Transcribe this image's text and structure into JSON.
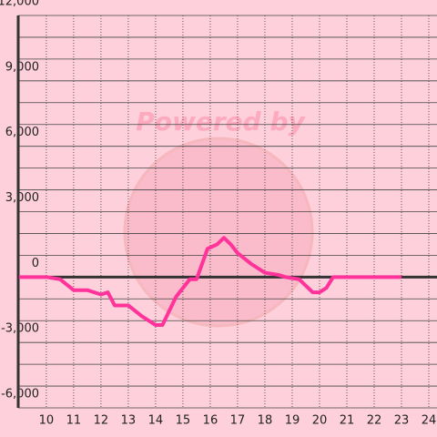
{
  "chart_data": {
    "type": "line",
    "watermark": "Powered by",
    "x": [
      9,
      10,
      10.5,
      11,
      11.5,
      12,
      12.25,
      12.5,
      13,
      13.5,
      14,
      14.25,
      14.75,
      15.25,
      15.5,
      15.9,
      16.25,
      16.5,
      16.75,
      17,
      17.5,
      18,
      18.5,
      18.75,
      19.25,
      19.75,
      20,
      20.25,
      20.5,
      23
    ],
    "series": [
      {
        "color": "#ff3399",
        "values": [
          0,
          0,
          -100,
          -600,
          -600,
          -800,
          -700,
          -1300,
          -1300,
          -1800,
          -2200,
          -2200,
          -900,
          -100,
          -100,
          1300,
          1500,
          1800,
          1500,
          1100,
          600,
          200,
          100,
          0,
          -100,
          -700,
          -700,
          -500,
          0,
          0
        ]
      }
    ],
    "xlim": [
      8.97,
      24.3
    ],
    "xticks": [
      10,
      11,
      12,
      13,
      14,
      15,
      16,
      17,
      18,
      19,
      20,
      21,
      22,
      23,
      24
    ],
    "ylim": [
      -6000,
      12000
    ],
    "yticks": [
      {
        "value": -6000,
        "label": "-6,000"
      },
      {
        "value": -3000,
        "label": "-3,000"
      },
      0,
      {
        "value": 3000,
        "label": "3,000"
      },
      {
        "value": 6000,
        "label": "6,000"
      },
      {
        "value": 9000,
        "label": "9,000"
      },
      {
        "value": 12000,
        "label": "12,000"
      }
    ],
    "yminorticks": [
      -5000,
      -4000,
      -2000,
      -1000,
      1000,
      2000,
      4000,
      5000,
      7000,
      8000,
      10000,
      11000
    ],
    "grid": true
  }
}
